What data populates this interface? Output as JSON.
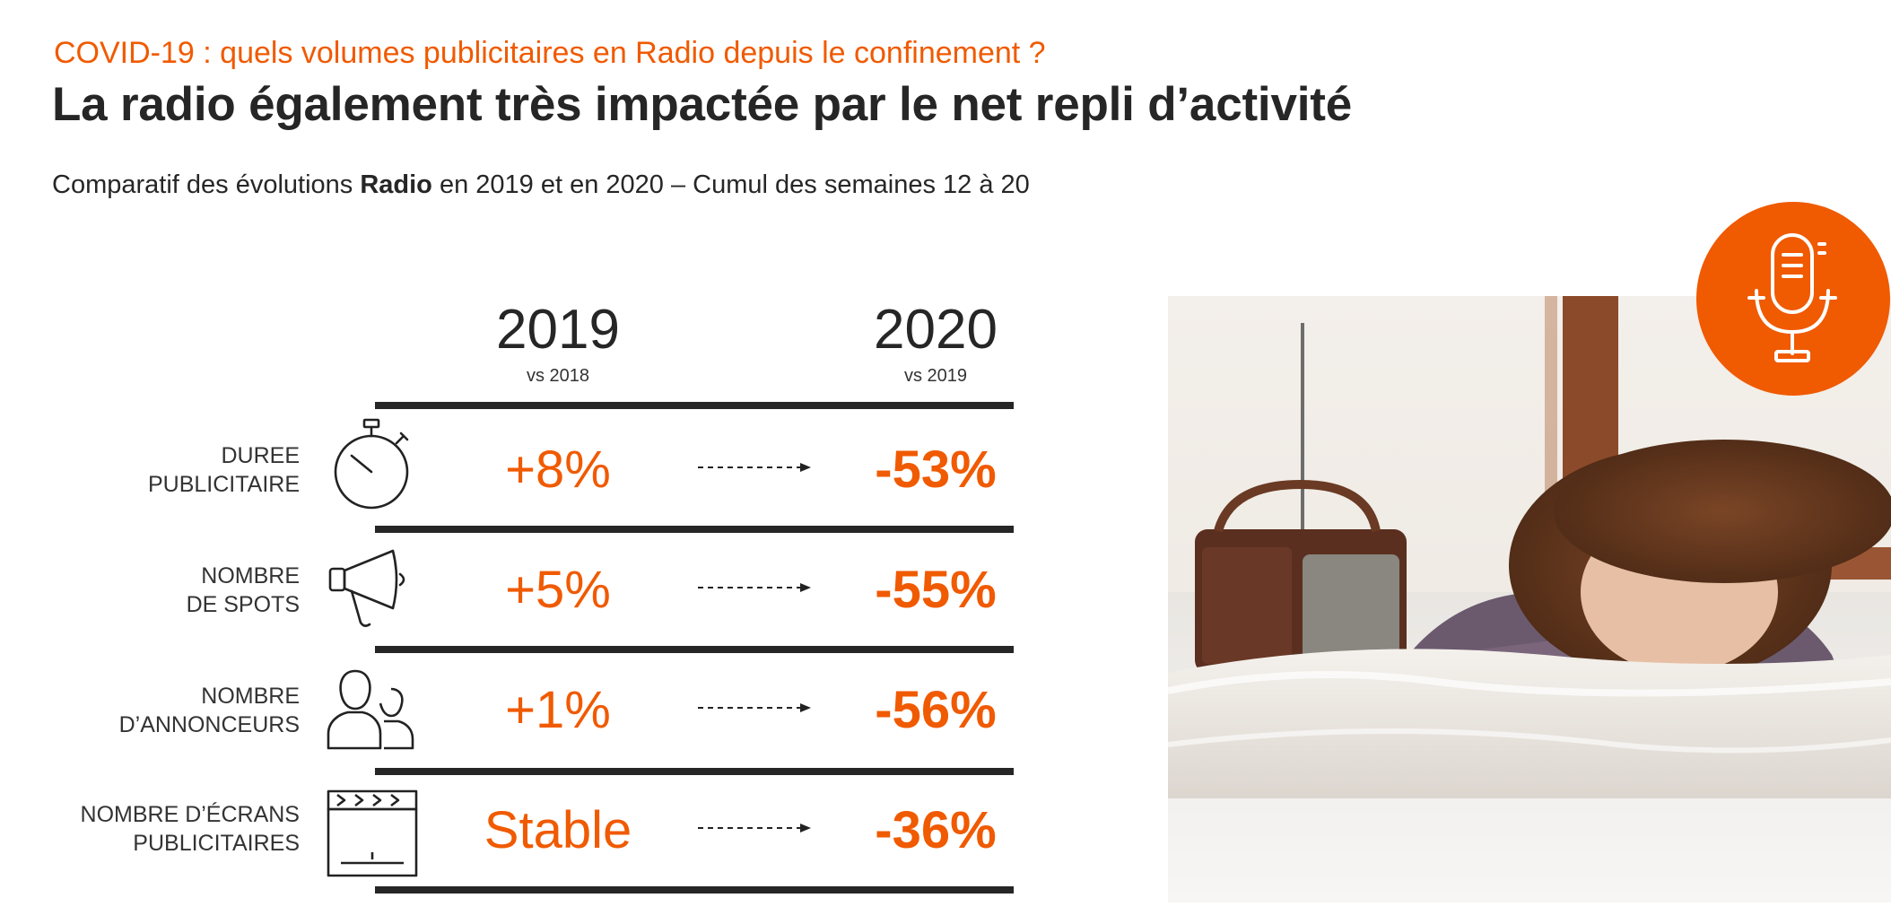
{
  "header": {
    "kicker": "COVID-19 : quels volumes publicitaires en Radio depuis le confinement ?",
    "title": "La radio également très impactée par le net repli d’activité",
    "subtitle_pre": "Comparatif des évolutions ",
    "subtitle_bold": "Radio",
    "subtitle_post": " en 2019 et en 2020 – Cumul des semaines 12 à 20"
  },
  "columns": {
    "col1_year": "2019",
    "col1_sub": "vs 2018",
    "col2_year": "2020",
    "col2_sub": "vs 2019"
  },
  "rows": [
    {
      "label_line1": "DUREE",
      "label_line2": "PUBLICITAIRE",
      "icon": "stopwatch-icon",
      "value_2019": "+8%",
      "value_2020": "-53%"
    },
    {
      "label_line1": "NOMBRE",
      "label_line2": "DE SPOTS",
      "icon": "megaphone-icon",
      "value_2019": "+5%",
      "value_2020": "-55%"
    },
    {
      "label_line1": "NOMBRE",
      "label_line2": "D’ANNONCEURS",
      "icon": "people-icon",
      "value_2019": "+1%",
      "value_2020": "-56%"
    },
    {
      "label_line1": "NOMBRE D’ÉCRANS",
      "label_line2": "PUBLICITAIRES",
      "icon": "clapperboard-icon",
      "value_2019": "Stable",
      "value_2020": "-36%"
    }
  ],
  "colors": {
    "accent": "#f05a00",
    "text": "#262626"
  },
  "media": {
    "photo_icon": "woman-with-radio-photo",
    "badge_icon": "microphone-icon"
  }
}
